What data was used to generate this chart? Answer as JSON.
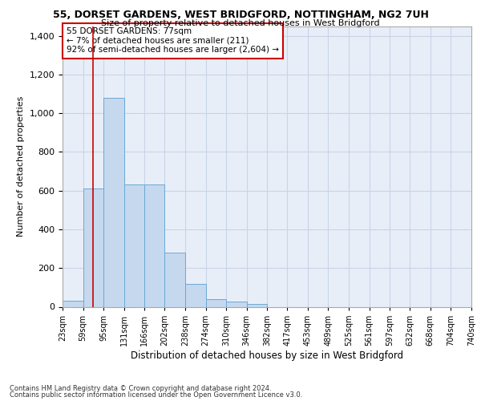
{
  "title": "55, DORSET GARDENS, WEST BRIDGFORD, NOTTINGHAM, NG2 7UH",
  "subtitle": "Size of property relative to detached houses in West Bridgford",
  "xlabel": "Distribution of detached houses by size in West Bridgford",
  "ylabel": "Number of detached properties",
  "footnote1": "Contains HM Land Registry data © Crown copyright and database right 2024.",
  "footnote2": "Contains public sector information licensed under the Open Government Licence v3.0.",
  "bin_labels": [
    "23sqm",
    "59sqm",
    "95sqm",
    "131sqm",
    "166sqm",
    "202sqm",
    "238sqm",
    "274sqm",
    "310sqm",
    "346sqm",
    "382sqm",
    "417sqm",
    "453sqm",
    "489sqm",
    "525sqm",
    "561sqm",
    "597sqm",
    "632sqm",
    "668sqm",
    "704sqm",
    "740sqm"
  ],
  "bar_values": [
    30,
    610,
    1080,
    630,
    630,
    280,
    120,
    40,
    25,
    15,
    0,
    0,
    0,
    0,
    0,
    0,
    0,
    0,
    0,
    0
  ],
  "bin_edges": [
    23,
    59,
    95,
    131,
    166,
    202,
    238,
    274,
    310,
    346,
    382,
    417,
    453,
    489,
    525,
    561,
    597,
    632,
    668,
    704,
    740
  ],
  "bar_color": "#c5d8ee",
  "bar_edge_color": "#6aaad4",
  "grid_color": "#c8d4e8",
  "background_color": "#e8eef8",
  "property_line_x": 77,
  "property_line_color": "#cc0000",
  "annotation_text_line1": "55 DORSET GARDENS: 77sqm",
  "annotation_text_line2": "← 7% of detached houses are smaller (211)",
  "annotation_text_line3": "92% of semi-detached houses are larger (2,604) →",
  "ylim": [
    0,
    1450
  ],
  "yticks": [
    0,
    200,
    400,
    600,
    800,
    1000,
    1200,
    1400
  ]
}
